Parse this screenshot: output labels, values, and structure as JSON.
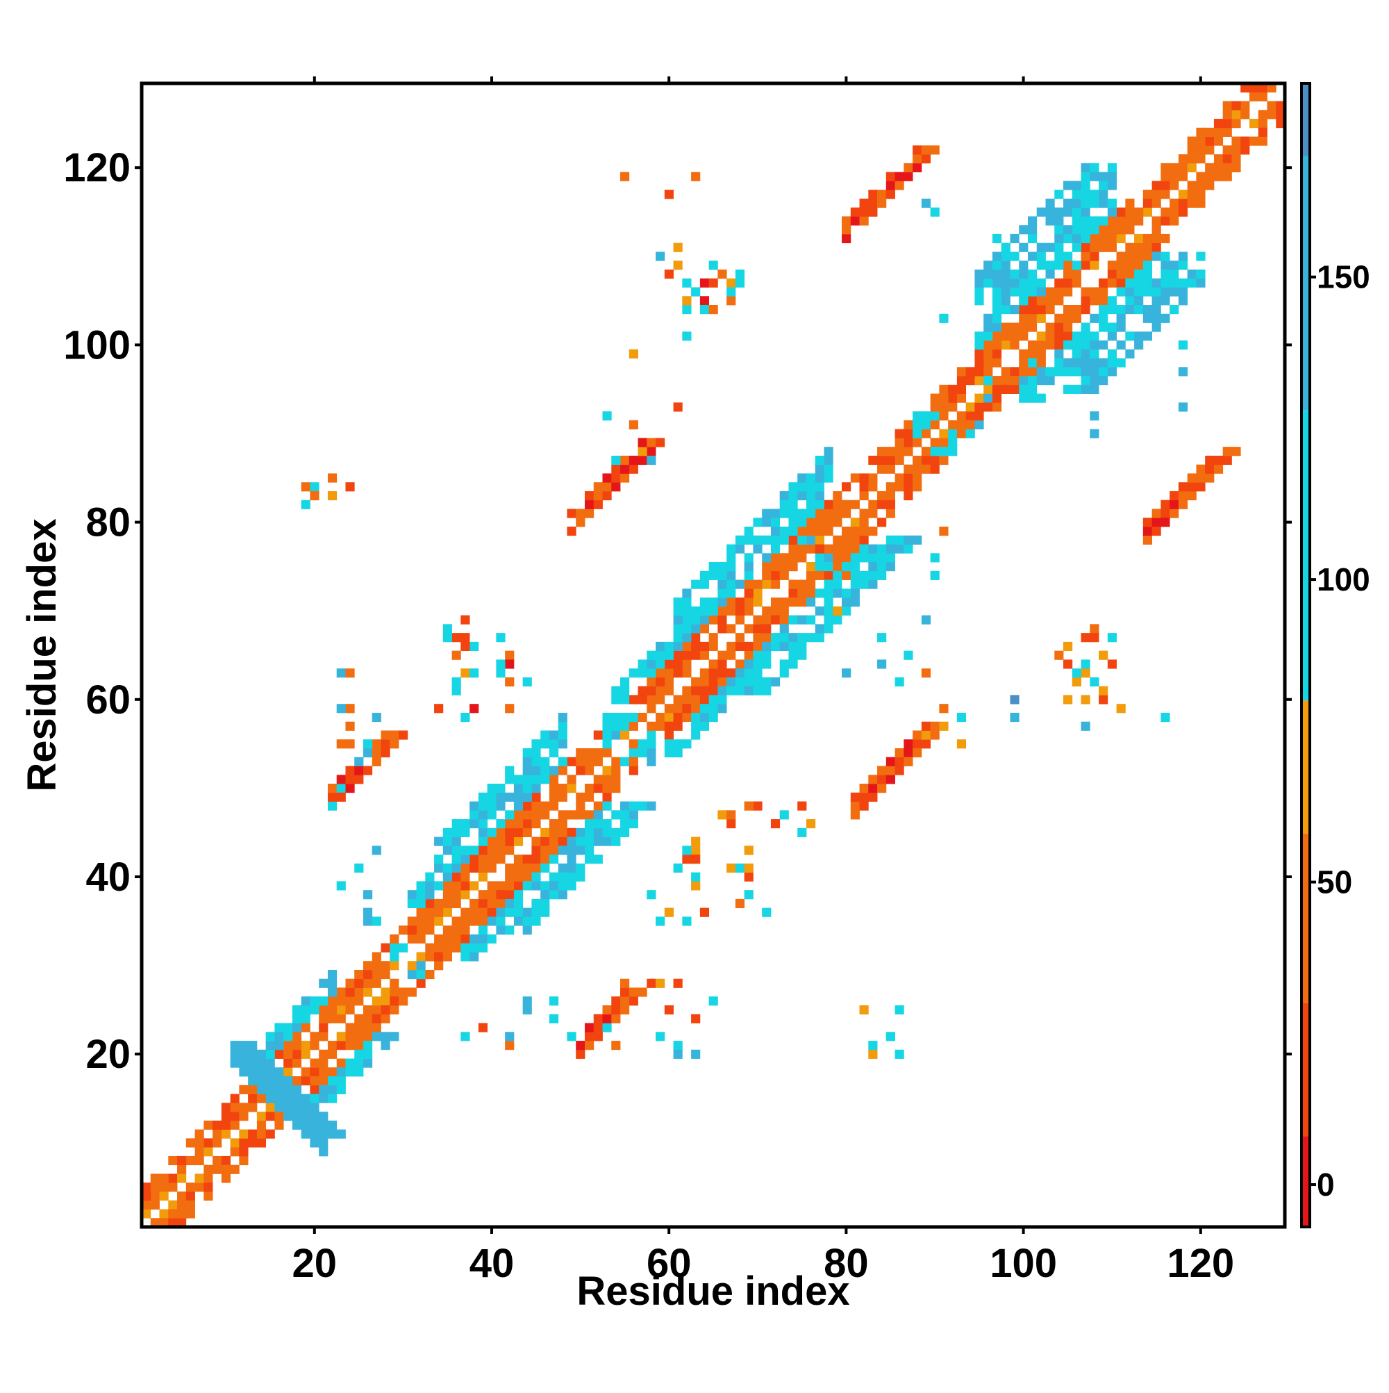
{
  "chart_data": {
    "type": "heatmap",
    "xlabel": "Residue index",
    "ylabel": "Residue index",
    "xlim": [
      1,
      129
    ],
    "ylim": [
      1,
      129
    ],
    "x_ticks": [
      "20",
      "40",
      "60",
      "80",
      "100",
      "120"
    ],
    "y_ticks": [
      "20",
      "40",
      "60",
      "80",
      "100",
      "120"
    ],
    "grid": false,
    "colorbar": {
      "range": [
        -7,
        182
      ],
      "ticks": [
        "0",
        "50",
        "100",
        "150"
      ],
      "bands": [
        {
          "from": -7,
          "to": 8,
          "color": "#e4161a"
        },
        {
          "from": 8,
          "to": 30,
          "color": "#f2440e"
        },
        {
          "from": 30,
          "to": 58,
          "color": "#f26d10"
        },
        {
          "from": 58,
          "to": 80,
          "color": "#f29b0b"
        },
        {
          "from": 80,
          "to": 128,
          "color": "#17d6e4"
        },
        {
          "from": 128,
          "to": 170,
          "color": "#38b4dc"
        },
        {
          "from": 170,
          "to": 182,
          "color": "#4a8fc6"
        }
      ]
    },
    "regions": [
      {
        "shape": "diag",
        "p": [
          [
            1,
            128
          ]
        ],
        "w": 2,
        "v": [
          35,
          65
        ]
      },
      {
        "shape": "band",
        "p": [
          [
            1,
            14
          ],
          [
            15,
            24
          ],
          [
            25,
            30
          ],
          [
            31,
            33
          ],
          [
            34,
            48
          ],
          [
            49,
            60
          ],
          [
            61,
            80
          ],
          [
            81,
            94
          ],
          [
            95,
            110
          ],
          [
            111,
            128
          ]
        ],
        "d": 3,
        "v": [
          20,
          55
        ]
      },
      {
        "shape": "band",
        "p": [
          [
            15,
            22
          ],
          [
            31,
            33
          ],
          [
            34,
            48
          ],
          [
            54,
            60
          ],
          [
            61,
            78
          ],
          [
            95,
            110
          ]
        ],
        "d": 6,
        "v": [
          95,
          140
        ]
      },
      {
        "shape": "band",
        "p": [
          [
            95,
            110
          ]
        ],
        "d": 9,
        "v": [
          95,
          150
        ]
      },
      {
        "shape": "band",
        "p": [
          [
            34,
            48
          ],
          [
            61,
            78
          ]
        ],
        "d": 9,
        "v": [
          95,
          145
        ]
      },
      {
        "shape": "band",
        "p": [
          [
            95,
            108
          ]
        ],
        "d": 12,
        "v": [
          100,
          160
        ]
      },
      {
        "shape": "cross",
        "x": 11,
        "y": 10,
        "len": 11,
        "w": 3,
        "v": [
          130,
          170
        ]
      },
      {
        "shape": "block",
        "x": [
          53,
          58
        ],
        "y": [
          53,
          58
        ],
        "v": [
          95,
          135
        ]
      },
      {
        "shape": "block",
        "x": [
          29,
          32
        ],
        "y": [
          29,
          32
        ],
        "v": [
          95,
          135
        ]
      },
      {
        "shape": "block",
        "x": [
          88,
          92
        ],
        "y": [
          88,
          92
        ],
        "v": [
          95,
          135
        ]
      },
      {
        "shape": "block",
        "x": [
          75,
          78
        ],
        "y": [
          75,
          78
        ],
        "v": [
          95,
          135
        ]
      },
      {
        "shape": "anti",
        "c": [
          84,
          118
        ],
        "len": 8,
        "w": 2,
        "v": [
          -3,
          50
        ]
      },
      {
        "shape": "anti",
        "c": [
          118,
          84
        ],
        "len": 8,
        "w": 2,
        "v": [
          -3,
          50
        ]
      },
      {
        "shape": "anti",
        "c": [
          53,
          85
        ],
        "len": 8,
        "w": 2,
        "v": [
          -3,
          45
        ]
      },
      {
        "shape": "anti",
        "c": [
          85,
          53
        ],
        "len": 8,
        "w": 2,
        "v": [
          -3,
          45
        ]
      },
      {
        "shape": "anti",
        "c": [
          53,
          25
        ],
        "len": 6,
        "w": 2,
        "v": [
          0,
          50
        ]
      },
      {
        "shape": "anti",
        "c": [
          25,
          53
        ],
        "len": 6,
        "w": 2,
        "v": [
          0,
          50
        ]
      },
      {
        "shape": "scatter",
        "x": [
          60,
          68
        ],
        "y": [
          104,
          110
        ],
        "n": 20,
        "v": [
          0,
          130
        ],
        "seed": 11
      },
      {
        "shape": "scatter",
        "x": [
          104,
          110
        ],
        "y": [
          60,
          68
        ],
        "n": 20,
        "v": [
          0,
          130
        ],
        "seed": 12
      },
      {
        "shape": "scatter",
        "x": [
          34,
          44
        ],
        "y": [
          58,
          71
        ],
        "n": 24,
        "v": [
          0,
          130
        ],
        "seed": 13
      },
      {
        "shape": "scatter",
        "x": [
          58,
          71
        ],
        "y": [
          34,
          44
        ],
        "n": 24,
        "v": [
          0,
          130
        ],
        "seed": 14
      },
      {
        "shape": "scatter",
        "x": [
          22,
          28
        ],
        "y": [
          51,
          64
        ],
        "n": 12,
        "v": [
          20,
          170
        ],
        "seed": 15
      },
      {
        "shape": "scatter",
        "x": [
          22,
          28
        ],
        "y": [
          34,
          50
        ],
        "n": 10,
        "v": [
          95,
          170
        ],
        "seed": 16
      },
      {
        "shape": "scatter",
        "x": [
          36,
          66
        ],
        "y": [
          20,
          29
        ],
        "n": 22,
        "v": [
          10,
          160
        ],
        "seed": 17
      },
      {
        "shape": "scatter",
        "x": [
          82,
          87
        ],
        "y": [
          19,
          26
        ],
        "n": 6,
        "v": [
          30,
          120
        ],
        "seed": 18
      },
      {
        "shape": "scatter",
        "x": [
          18,
          26
        ],
        "y": [
          82,
          86
        ],
        "n": 8,
        "v": [
          20,
          120
        ],
        "seed": 19
      },
      {
        "shape": "scatter",
        "x": [
          52,
          63
        ],
        "y": [
          83,
          120
        ],
        "n": 14,
        "v": [
          20,
          170
        ],
        "seed": 20
      },
      {
        "shape": "scatter",
        "x": [
          75,
          92
        ],
        "y": [
          62,
          80
        ],
        "n": 16,
        "v": [
          20,
          170
        ],
        "seed": 21
      },
      {
        "shape": "scatter",
        "x": [
          88,
          118
        ],
        "y": [
          84,
          120
        ],
        "n": 24,
        "v": [
          95,
          175
        ],
        "seed": 22
      },
      {
        "shape": "scatter",
        "x": [
          88,
          120
        ],
        "y": [
          54,
          60
        ],
        "n": 10,
        "v": [
          30,
          175
        ],
        "seed": 23
      },
      {
        "shape": "scatter",
        "x": [
          61,
          76
        ],
        "y": [
          44,
          48
        ],
        "n": 10,
        "v": [
          0,
          150
        ],
        "seed": 24
      }
    ]
  }
}
